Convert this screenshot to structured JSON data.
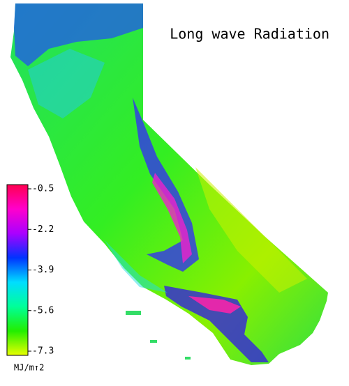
{
  "title": "Long wave Radiation",
  "legend": {
    "label": "MJ/m↑2",
    "range": [
      -7.3,
      -0.5
    ],
    "ticks": [
      -0.5,
      -2.2,
      -3.9,
      -5.6,
      -7.3
    ],
    "colors": [
      "#e8ff00",
      "#22ee00",
      "#00ff99",
      "#00ddff",
      "#0033ff",
      "#aa00ff",
      "#ff00cc",
      "#ff0050"
    ]
  }
}
